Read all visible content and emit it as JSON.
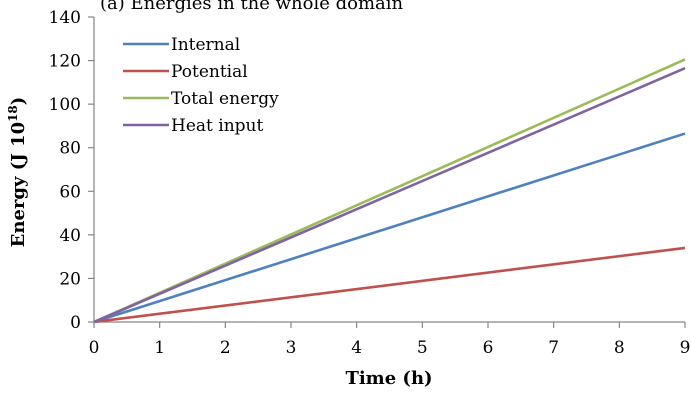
{
  "top_caption": "(a) Energies in the whole domain",
  "chart_data": {
    "type": "line",
    "xlabel": "Time (h)",
    "ylabel": "Energy (J 10",
    "ylabel_sup": "18",
    "ylabel_end": ")",
    "xlim": [
      0,
      9
    ],
    "ylim": [
      0,
      140
    ],
    "xticks": [
      "0",
      "1",
      "2",
      "3",
      "4",
      "5",
      "6",
      "7",
      "8",
      "9"
    ],
    "yticks": [
      "0",
      "20",
      "40",
      "60",
      "80",
      "100",
      "120",
      "140"
    ],
    "grid": false,
    "legend_position": "top-left",
    "series": [
      {
        "name": "Internal",
        "color": "#4f81bd",
        "x": [
          0,
          9
        ],
        "y": [
          0,
          86.5
        ]
      },
      {
        "name": "Potential",
        "color": "#c0504d",
        "x": [
          0,
          9
        ],
        "y": [
          0,
          34
        ]
      },
      {
        "name": "Total energy",
        "color": "#9bbb59",
        "x": [
          0,
          9
        ],
        "y": [
          0,
          120.5
        ]
      },
      {
        "name": "Heat input",
        "color": "#8064a2",
        "x": [
          0,
          9
        ],
        "y": [
          0,
          116.5
        ]
      }
    ]
  }
}
